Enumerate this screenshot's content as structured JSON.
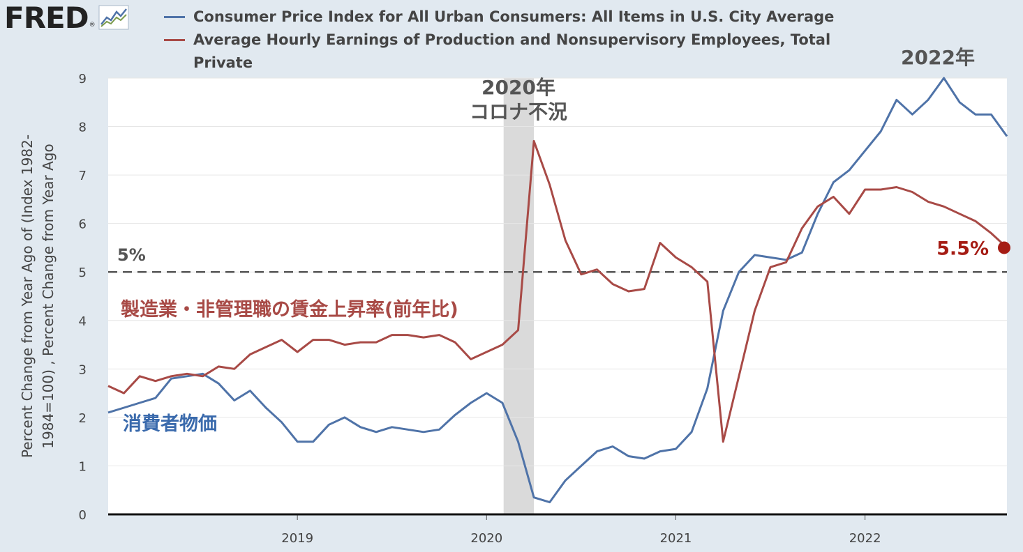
{
  "header": {
    "logo_text": "FRED",
    "logo_reg": "®"
  },
  "colors": {
    "cpi": "#4f73a8",
    "earnings": "#a84a46",
    "recession": "#d4d4d4",
    "background": "#e1e9f0",
    "plot_bg": "#ffffff",
    "annotation_gray": "#555555"
  },
  "chart_data": {
    "type": "line",
    "title": "",
    "xlabel": "",
    "ylabel": "Percent Change from Year Ago of (Index 1982-1984=100) , Percent Change from Year Ago",
    "xlim": [
      2018.0,
      2022.75
    ],
    "ylim": [
      0,
      9
    ],
    "grid": true,
    "legend_position": "top",
    "x_ticks": [
      2019,
      2020,
      2021,
      2022
    ],
    "x_tick_labels": [
      "2019",
      "2020",
      "2021",
      "2022"
    ],
    "y_ticks": [
      0,
      1,
      2,
      3,
      4,
      5,
      6,
      7,
      8,
      9
    ],
    "y_tick_labels": [
      "0",
      "1",
      "2",
      "3",
      "4",
      "5",
      "6",
      "7",
      "8",
      "9"
    ],
    "recession": {
      "start": 2020.09,
      "end": 2020.25
    },
    "reference_line": {
      "y": 5,
      "label": "5%",
      "style": "dashed"
    },
    "series": [
      {
        "name": "Consumer Price Index for All Urban Consumers: All Items in U.S. City Average",
        "annotation": "消費者物価",
        "color": "#4f73a8",
        "values": [
          2.1,
          2.2,
          2.3,
          2.4,
          2.8,
          2.85,
          2.9,
          2.7,
          2.35,
          2.55,
          2.2,
          1.9,
          1.5,
          1.5,
          1.85,
          2.0,
          1.8,
          1.7,
          1.8,
          1.75,
          1.7,
          1.75,
          2.05,
          2.3,
          2.5,
          2.3,
          1.5,
          0.35,
          0.25,
          0.7,
          1.0,
          1.3,
          1.4,
          1.2,
          1.15,
          1.3,
          1.35,
          1.7,
          2.6,
          4.2,
          5.0,
          5.35,
          5.3,
          5.25,
          5.4,
          6.2,
          6.85,
          7.1,
          7.5,
          7.9,
          8.55,
          8.25,
          8.55,
          9.0,
          8.5,
          8.25,
          8.25,
          7.8
        ]
      },
      {
        "name": "Average Hourly Earnings of Production and Nonsupervisory Employees, Total Private",
        "annotation": "製造業・非管理職の賃金上昇率(前年比)",
        "color": "#a84a46",
        "values": [
          2.65,
          2.5,
          2.85,
          2.75,
          2.85,
          2.9,
          2.85,
          3.05,
          3.0,
          3.3,
          3.45,
          3.6,
          3.35,
          3.6,
          3.6,
          3.5,
          3.55,
          3.55,
          3.7,
          3.7,
          3.65,
          3.7,
          3.55,
          3.2,
          3.35,
          3.5,
          3.8,
          7.7,
          6.8,
          5.65,
          4.95,
          5.05,
          4.75,
          4.6,
          4.65,
          5.6,
          5.3,
          5.1,
          4.8,
          1.5,
          2.85,
          4.2,
          5.1,
          5.2,
          5.9,
          6.35,
          6.55,
          6.2,
          6.7,
          6.7,
          6.75,
          6.65,
          6.45,
          6.35,
          6.2,
          6.05,
          5.8,
          5.5
        ]
      }
    ],
    "annotations": [
      {
        "text": "2020年",
        "x": 2020.17,
        "y": 8.8
      },
      {
        "text": "コロナ不況",
        "x": 2020.17,
        "y": 8.3
      },
      {
        "text": "2022年",
        "x": 2022.42,
        "y": 9.5
      },
      {
        "text": "5.5%",
        "x": 2022.55,
        "y": 5.5
      }
    ]
  }
}
